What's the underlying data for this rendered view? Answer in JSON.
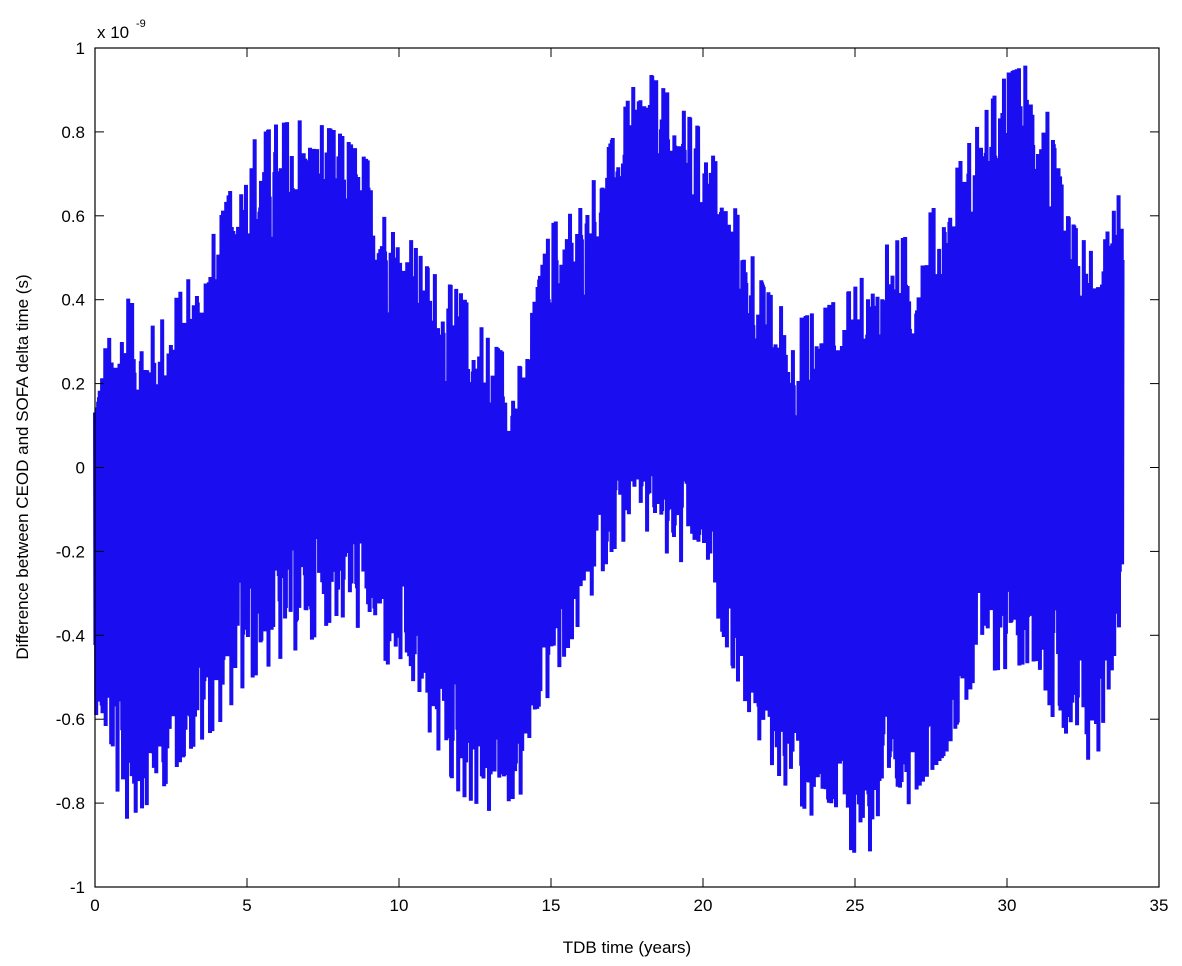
{
  "chart_data": {
    "type": "line",
    "title": "",
    "xlabel": "TDB time (years)",
    "ylabel": "Difference between CEOD and SOFA delta time (s)",
    "y_multiplier_label": "x 10",
    "y_multiplier_exponent": "-9",
    "xlim": [
      0,
      35
    ],
    "ylim": [
      -1,
      1
    ],
    "x_ticks": [
      "0",
      "5",
      "10",
      "15",
      "20",
      "25",
      "30",
      "35"
    ],
    "y_ticks": [
      "-1",
      "-0.8",
      "-0.6",
      "-0.4",
      "-0.2",
      "0",
      "0.2",
      "0.4",
      "0.6",
      "0.8",
      "1"
    ],
    "grid": false,
    "line_color": "#1a0df0",
    "series": [
      {
        "x_start": 0,
        "x_end": 33.8,
        "envelope": {
          "x": [
            0,
            1,
            2,
            3,
            4,
            5,
            6,
            7,
            8,
            9,
            10,
            11,
            12,
            13,
            14,
            15,
            16,
            17,
            18,
            19,
            20,
            21,
            22,
            23,
            24,
            25,
            26,
            27,
            28,
            29,
            30,
            31,
            32,
            33,
            33.8
          ],
          "upper": [
            0.22,
            0.41,
            0.33,
            0.44,
            0.57,
            0.77,
            0.82,
            0.83,
            0.8,
            0.73,
            0.59,
            0.47,
            0.42,
            0.3,
            0.24,
            0.58,
            0.62,
            0.78,
            0.96,
            0.88,
            0.8,
            0.63,
            0.43,
            0.35,
            0.38,
            0.43,
            0.53,
            0.56,
            0.66,
            0.81,
            0.94,
            0.97,
            0.6,
            0.49,
            0.68
          ],
          "lower": [
            -0.58,
            -0.84,
            -0.79,
            -0.68,
            -0.62,
            -0.51,
            -0.46,
            -0.42,
            -0.35,
            -0.4,
            -0.51,
            -0.63,
            -0.78,
            -0.82,
            -0.78,
            -0.52,
            -0.36,
            -0.2,
            -0.14,
            -0.22,
            -0.24,
            -0.48,
            -0.68,
            -0.79,
            -0.86,
            -0.92,
            -0.91,
            -0.77,
            -0.68,
            -0.49,
            -0.48,
            -0.46,
            -0.73,
            -0.68,
            -0.33
          ]
        }
      }
    ]
  }
}
